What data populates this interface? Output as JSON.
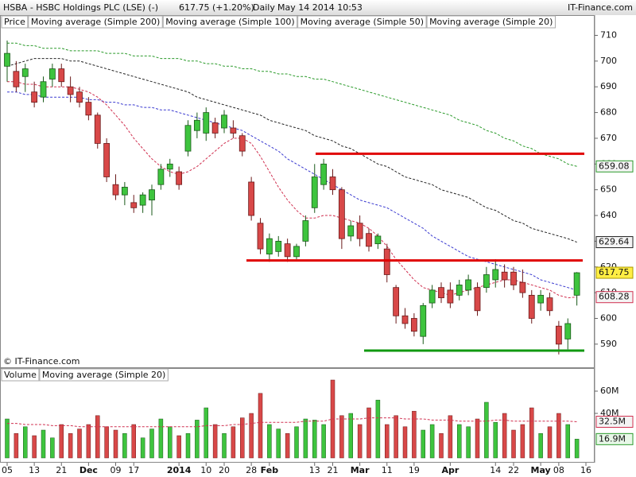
{
  "header": {
    "symbol": "HSBA - HSBC Holdings PLC (LSE) (-)",
    "quote": "617.75 (+1.20%)",
    "period": "Daily",
    "timestamp": "May 14 2014 10:53",
    "site": "IT-Finance.com"
  },
  "chart_data": [
    {
      "type": "candlestick",
      "watermark": "© IT-Finance.com",
      "price_label": "Price",
      "close_label": "617.75",
      "up_color": "#3ec43e",
      "down_color": "#d84848",
      "categories": [
        "05",
        null,
        null,
        "13",
        null,
        null,
        "21",
        null,
        null,
        "Dec",
        null,
        null,
        "09",
        null,
        "17",
        null,
        null,
        null,
        null,
        "2014",
        null,
        null,
        "10",
        null,
        "20",
        null,
        null,
        "28",
        null,
        "Feb",
        null,
        null,
        null,
        null,
        "13",
        null,
        "21",
        null,
        null,
        "Mar",
        null,
        null,
        "11",
        null,
        null,
        "19",
        null,
        null,
        null,
        "Apr",
        null,
        null,
        null,
        null,
        "14",
        null,
        "22",
        null,
        null,
        "May",
        null,
        "08",
        null,
        null,
        "16"
      ],
      "open": [
        698,
        696,
        694,
        688,
        686,
        693,
        697,
        690,
        688,
        684,
        679,
        668,
        652,
        648,
        645,
        644,
        646,
        652,
        658,
        657,
        665,
        673,
        672,
        676,
        674,
        674,
        671,
        653,
        637,
        625,
        626,
        629,
        624,
        630,
        643,
        652,
        655,
        650,
        632,
        637,
        633,
        629,
        627,
        612,
        601,
        600,
        593,
        606,
        612,
        611,
        609,
        611,
        612,
        612,
        615,
        618,
        618,
        614,
        609,
        606,
        608,
        597,
        592,
        609,
        null
      ],
      "high": [
        708,
        700,
        699,
        692,
        694,
        699,
        699,
        694,
        690,
        686,
        680,
        670,
        656,
        653,
        648,
        649,
        652,
        660,
        662,
        659,
        677,
        680,
        682,
        678,
        681,
        677,
        672,
        655,
        639,
        633,
        632,
        631,
        629,
        640,
        660,
        662,
        658,
        651,
        638,
        640,
        635,
        633,
        629,
        613,
        604,
        602,
        606,
        613,
        614,
        614,
        615,
        617,
        614,
        620,
        623,
        621,
        620,
        619,
        611,
        611,
        610,
        599,
        600,
        618,
        null
      ],
      "low": [
        692,
        688,
        688,
        682,
        684,
        690,
        690,
        684,
        682,
        677,
        666,
        653,
        646,
        644,
        641,
        641,
        640,
        650,
        655,
        650,
        663,
        670,
        669,
        670,
        672,
        670,
        663,
        638,
        625,
        622,
        624,
        622,
        623,
        628,
        641,
        650,
        648,
        627,
        630,
        628,
        626,
        627,
        614,
        598,
        596,
        593,
        590,
        604,
        606,
        604,
        607,
        609,
        601,
        610,
        612,
        612,
        611,
        608,
        598,
        603,
        601,
        586,
        588,
        605,
        null
      ],
      "close": [
        703,
        690,
        697,
        684,
        692,
        697,
        692,
        687,
        684,
        679,
        668,
        655,
        648,
        651,
        643,
        648,
        650,
        658,
        660,
        652,
        675,
        677,
        680,
        672,
        679,
        672,
        665,
        640,
        627,
        631,
        630,
        624,
        628,
        638,
        655,
        660,
        650,
        631,
        636,
        631,
        628,
        632,
        617,
        601,
        598,
        595,
        605,
        611,
        608,
        606,
        613,
        615,
        603,
        617,
        619,
        615,
        613,
        610,
        600,
        609,
        603,
        590,
        598,
        617.75,
        null
      ],
      "series": [
        {
          "name": "Moving average (Simple 200)",
          "color": "#2a9a2a",
          "end_label": "659.08",
          "values": [
            707,
            707,
            706,
            706,
            705,
            705,
            705,
            704,
            704,
            704,
            704,
            703,
            703,
            703,
            702,
            702,
            702,
            701,
            701,
            701,
            700,
            700,
            699,
            699,
            698,
            698,
            697,
            697,
            696,
            696,
            695,
            695,
            694,
            694,
            693,
            693,
            692,
            691,
            690,
            689,
            688,
            687,
            686,
            685,
            684,
            683,
            682,
            681,
            680,
            679,
            677,
            676,
            675,
            673,
            672,
            670,
            669,
            667,
            666,
            664,
            663,
            662,
            660,
            659.08,
            null
          ]
        },
        {
          "name": "Moving average (Simple 100)",
          "color": "#222222",
          "end_label": "629.64",
          "values": [
            698,
            699,
            700,
            701,
            701,
            701,
            701,
            700,
            700,
            699,
            698,
            697,
            696,
            695,
            694,
            693,
            692,
            691,
            690,
            689,
            688,
            686,
            685,
            684,
            683,
            682,
            681,
            680,
            679,
            677,
            676,
            675,
            674,
            673,
            671,
            670,
            669,
            667,
            666,
            664,
            662,
            660,
            659,
            657,
            655,
            654,
            653,
            652,
            650,
            649,
            648,
            647,
            645,
            643,
            642,
            640,
            638,
            637,
            635,
            634,
            633,
            632,
            631,
            629.64,
            null
          ]
        },
        {
          "name": "Moving average (Simple 50)",
          "color": "#3a3ad0",
          "values": [
            688,
            688,
            687,
            687,
            686,
            686,
            686,
            686,
            686,
            685,
            685,
            684,
            684,
            683,
            683,
            682,
            682,
            681,
            681,
            680,
            679,
            678,
            677,
            676,
            675,
            674,
            673,
            671,
            669,
            667,
            665,
            662,
            660,
            658,
            656,
            654,
            652,
            650,
            648,
            646,
            645,
            644,
            643,
            641,
            639,
            637,
            635,
            632,
            630,
            628,
            626,
            624,
            623,
            622,
            621,
            620,
            619,
            618,
            617,
            615,
            614,
            613,
            612,
            611,
            null
          ]
        },
        {
          "name": "Moving average (Simple 20)",
          "color": "#d03050",
          "end_label": "608.28",
          "values": [
            692,
            692,
            691,
            691,
            690,
            690,
            690,
            690,
            689,
            688,
            686,
            683,
            679,
            675,
            670,
            666,
            662,
            659,
            657,
            656,
            657,
            659,
            662,
            665,
            668,
            670,
            670,
            668,
            663,
            657,
            651,
            646,
            642,
            639,
            639,
            640,
            640,
            639,
            638,
            637,
            635,
            632,
            628,
            623,
            619,
            615,
            612,
            611,
            610,
            609,
            610,
            611,
            612,
            613,
            614,
            615,
            615,
            614,
            613,
            612,
            611,
            609,
            608,
            608.28,
            null
          ]
        }
      ],
      "hlines": [
        {
          "value": 664,
          "color": "#e00000"
        },
        {
          "value": 622.5,
          "color": "#e00000"
        },
        {
          "value": 587.5,
          "color": "#119911"
        }
      ],
      "ylim": [
        581,
        712
      ],
      "yticks": [
        590,
        600,
        610,
        620,
        630,
        640,
        650,
        660,
        670,
        680,
        690,
        700,
        710
      ]
    },
    {
      "type": "bar",
      "name": "Volume",
      "end_label": "16.9M",
      "values": [
        35,
        22,
        28,
        20,
        25,
        18,
        30,
        22,
        26,
        30,
        38,
        28,
        25,
        22,
        30,
        18,
        26,
        35,
        28,
        20,
        22,
        34,
        45,
        30,
        22,
        28,
        36,
        40,
        58,
        30,
        26,
        22,
        28,
        35,
        34,
        30,
        70,
        38,
        40,
        30,
        45,
        52,
        30,
        38,
        28,
        42,
        25,
        30,
        22,
        38,
        30,
        28,
        35,
        50,
        32,
        40,
        25,
        30,
        45,
        22,
        28,
        40,
        30,
        16.9,
        null
      ],
      "series": [
        {
          "name": "Moving average (Simple 20)",
          "color": "#d03050",
          "end_label": "32.5M",
          "values": [
            31,
            31,
            30,
            30,
            30,
            29,
            29,
            29,
            28,
            28,
            28,
            28,
            28,
            28,
            28,
            28,
            28,
            28,
            28,
            28,
            28,
            28,
            29,
            29,
            29,
            30,
            30,
            31,
            32,
            32,
            32,
            32,
            32,
            33,
            33,
            33,
            35,
            35,
            35,
            35,
            36,
            36,
            36,
            36,
            35,
            35,
            35,
            34,
            34,
            34,
            33,
            33,
            33,
            33,
            34,
            34,
            33,
            33,
            33,
            33,
            33,
            33,
            33,
            32.5,
            null
          ]
        }
      ],
      "ylim": [
        0,
        80
      ],
      "yticks": [
        {
          "value": 40,
          "label": "40M"
        },
        {
          "value": 60,
          "label": "60M"
        }
      ]
    }
  ]
}
